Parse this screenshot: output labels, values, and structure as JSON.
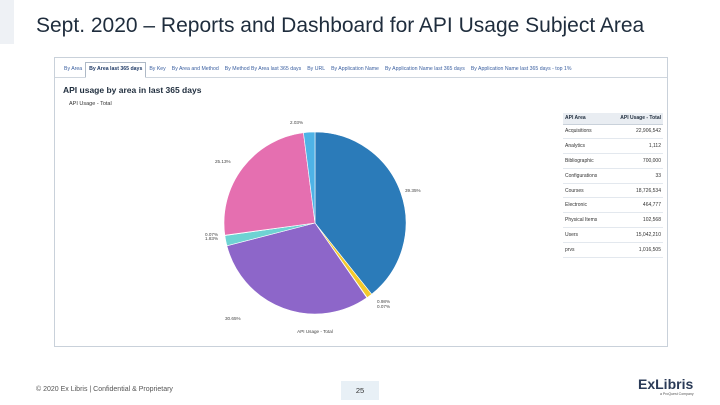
{
  "slide": {
    "title": "Sept. 2020 – Reports and Dashboard for API Usage Subject Area",
    "footer": "© 2020 Ex Libris | Confidential & Proprietary",
    "page_number": "25",
    "logo_text": "ExLibris",
    "logo_subtext": "a ProQuest Company"
  },
  "dashboard": {
    "tabs": [
      {
        "label": "By Area",
        "active": false
      },
      {
        "label": "By Area last 365 days",
        "active": true
      },
      {
        "label": "By Key",
        "active": false
      },
      {
        "label": "By Area and Method",
        "active": false
      },
      {
        "label": "By Method By Area last 365 days",
        "active": false
      },
      {
        "label": "By URL",
        "active": false
      },
      {
        "label": "By Application Name",
        "active": false
      },
      {
        "label": "By Application Name last 365 days",
        "active": false
      },
      {
        "label": "By Application Name last 365 days - top 1%",
        "active": false
      }
    ],
    "panel_title": "API usage by area in last 365 days",
    "subtitle": "API Usage - Total",
    "table": {
      "headers": [
        "API Area",
        "API Usage - Total"
      ],
      "rows": [
        [
          "Acquisitions",
          "22,906,542"
        ],
        [
          "Analytics",
          "1,112"
        ],
        [
          "Bibliographic",
          "700,000"
        ],
        [
          "Configurations",
          "33"
        ],
        [
          "Courses",
          "18,726,534"
        ],
        [
          "Electronic",
          "464,777"
        ],
        [
          "Physical Items",
          "102,568"
        ],
        [
          "Users",
          "15,042,210"
        ],
        [
          "prvs",
          "1,016,505"
        ]
      ]
    }
  },
  "chart_data": {
    "type": "pie",
    "title": "",
    "legend_title": "API Usage - Total",
    "slices": [
      {
        "label": "39.35%",
        "value": 39.35,
        "color": "#2b7bb9"
      },
      {
        "label": "0.98%",
        "value": 0.98,
        "color": "#f3c92c"
      },
      {
        "label": "0.07%",
        "value": 0.07,
        "color": "#9b59b6"
      },
      {
        "label": "30.65%",
        "value": 30.65,
        "color": "#8d66c9"
      },
      {
        "label": "1.83%",
        "value": 1.83,
        "color": "#6fd3d3"
      },
      {
        "label": "0.07%",
        "value": 0.07,
        "color": "#d9e9f5"
      },
      {
        "label": "25.13%",
        "value": 25.13,
        "color": "#e56fb0"
      },
      {
        "label": "2.03%",
        "value": 2.03,
        "color": "#4eb3e6"
      }
    ]
  }
}
